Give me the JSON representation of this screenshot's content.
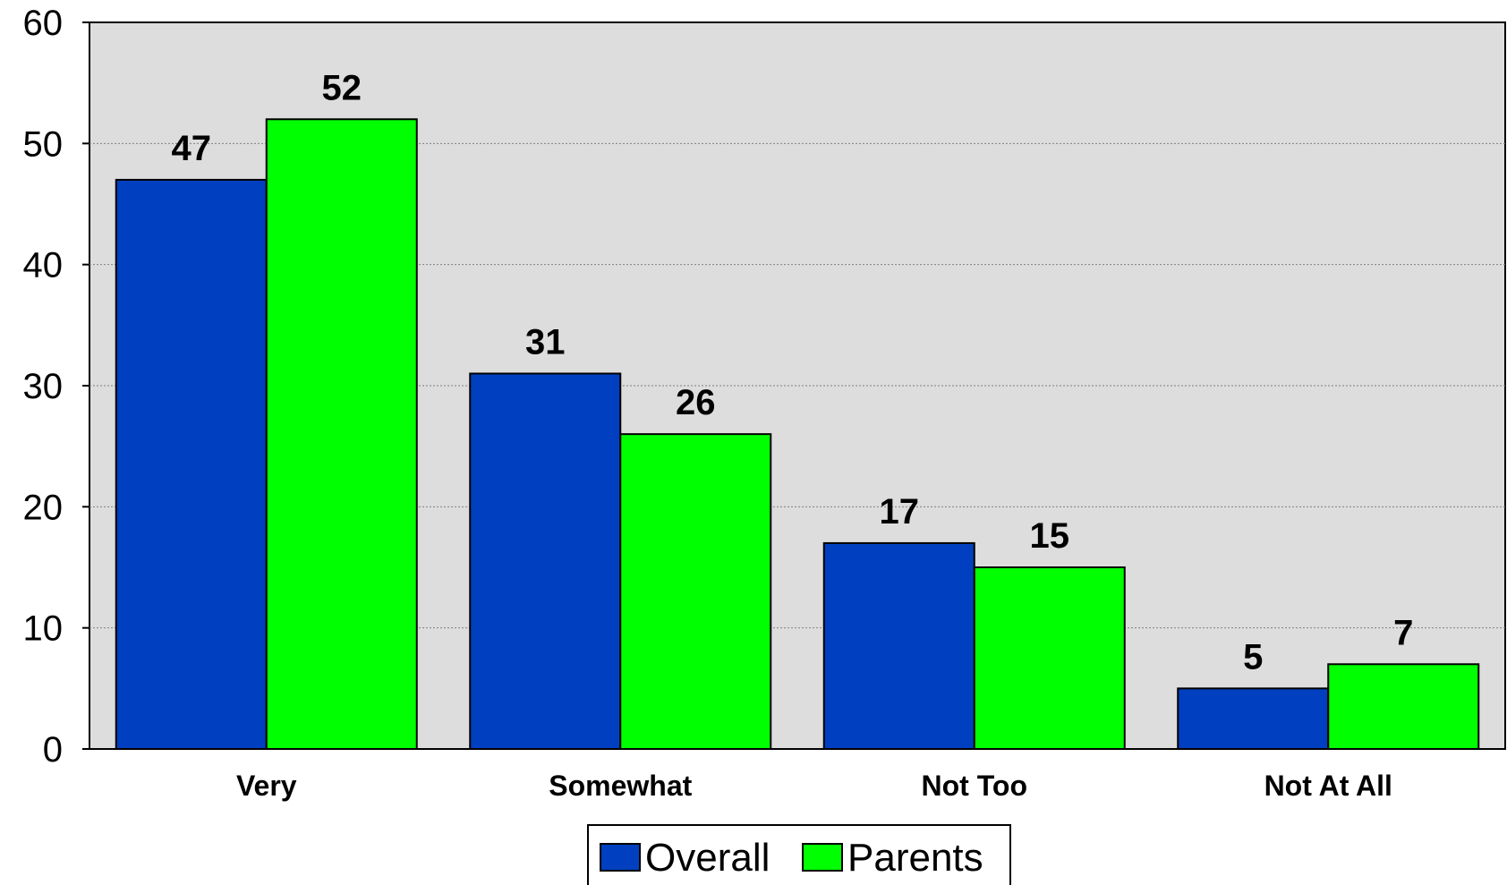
{
  "chart_data": {
    "type": "bar",
    "categories": [
      "Very",
      "Somewhat",
      "Not Too",
      "Not At All"
    ],
    "series": [
      {
        "name": "Overall",
        "values": [
          47,
          31,
          17,
          5
        ],
        "color": "#0040C0"
      },
      {
        "name": "Parents",
        "values": [
          52,
          26,
          15,
          7
        ],
        "color": "#00FF00"
      }
    ],
    "ylim": [
      0,
      60
    ],
    "yticks": [
      0,
      10,
      20,
      30,
      40,
      50,
      60
    ],
    "grid": true,
    "plot_background": "#DDDDDD",
    "legend_position": "bottom-center"
  }
}
